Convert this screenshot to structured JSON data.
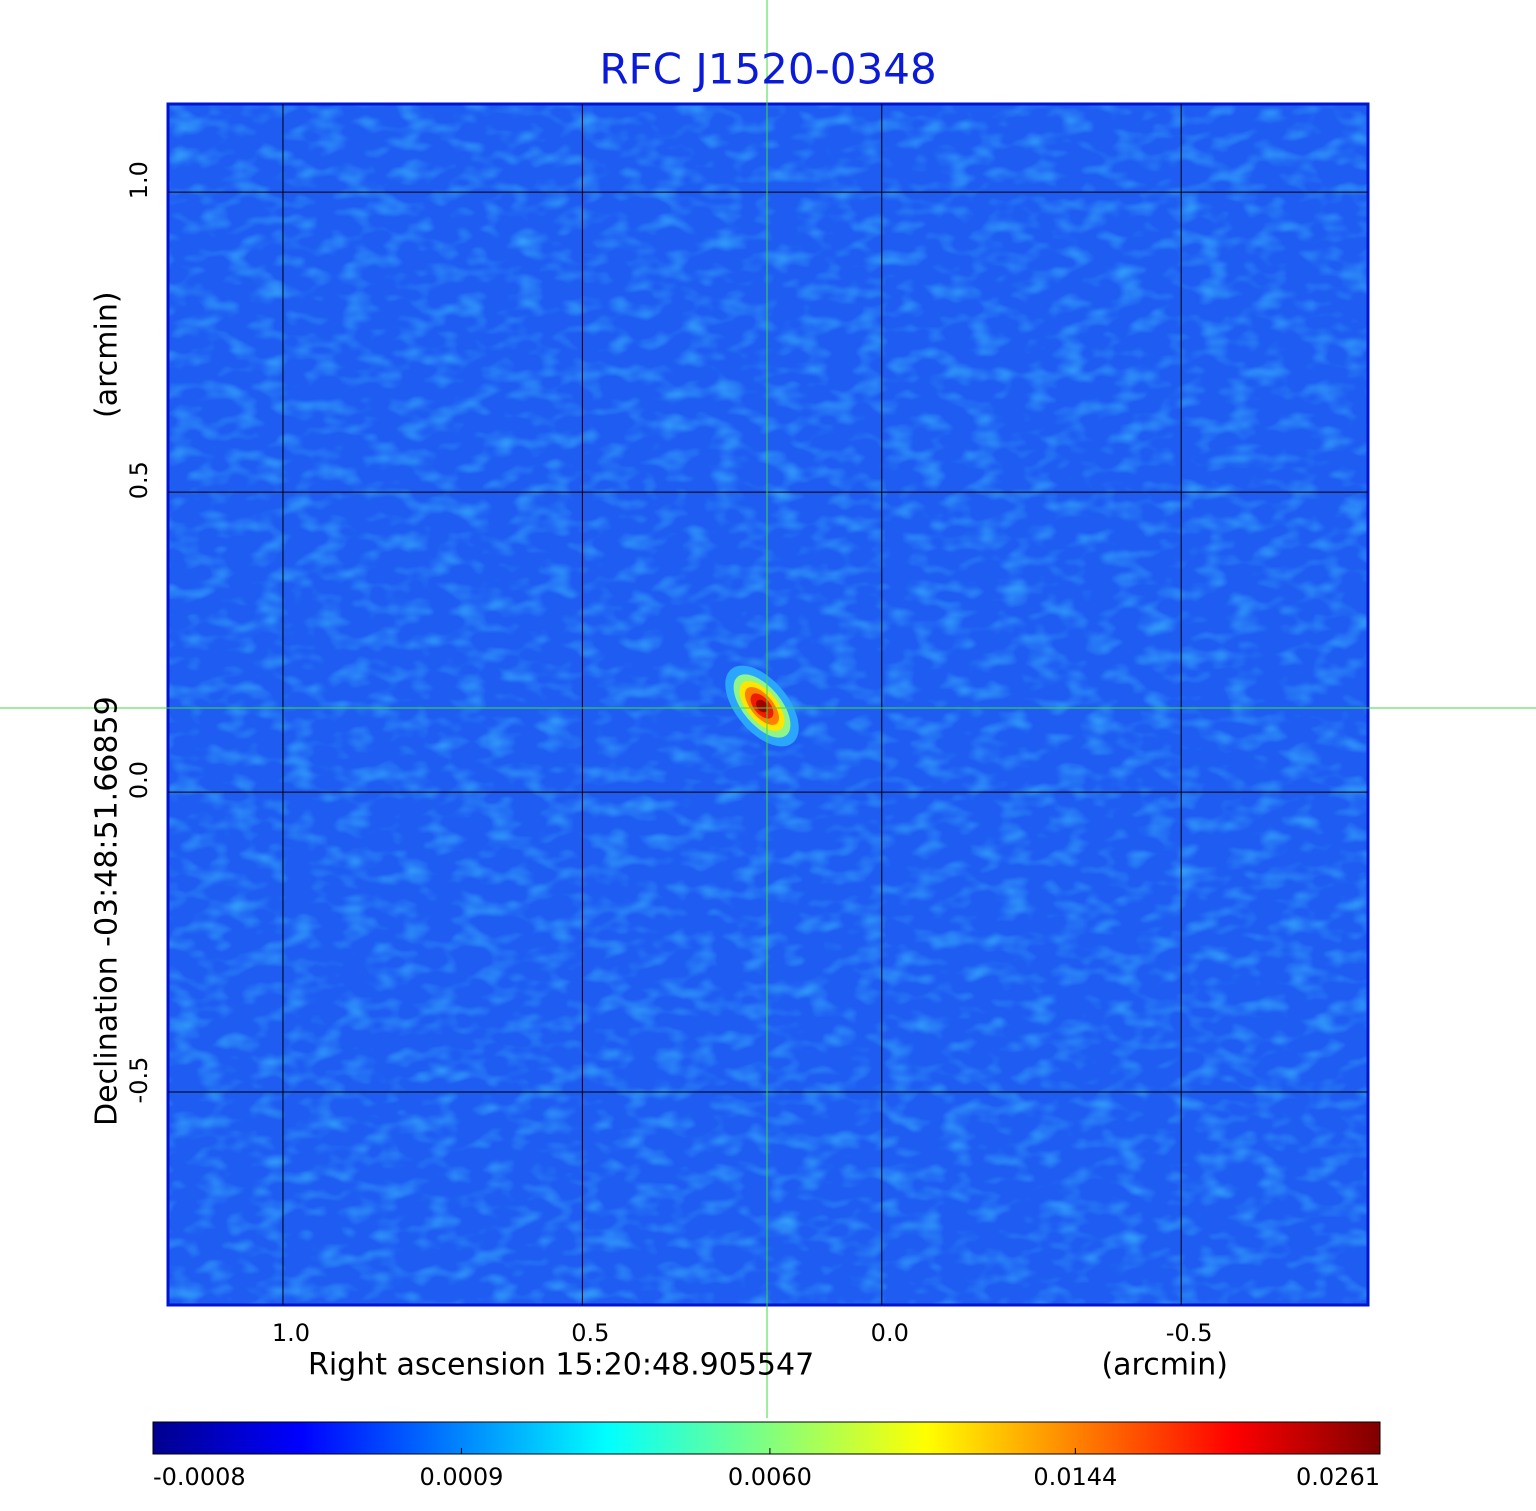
{
  "chart_data": {
    "type": "image",
    "title": "RFC J1520-0348",
    "xlabel": "Right ascension  15:20:48.905547",
    "xunit": "(arcmin)",
    "ylabel": "Declination  -03:48:51.66859",
    "yunit": "(arcmin)",
    "xlim": [
      1.192,
      -0.812
    ],
    "ylim": [
      -0.855,
      1.147
    ],
    "xticks": [
      {
        "value": 1,
        "label": "1.0"
      },
      0.5,
      {
        "value": 0,
        "label": "0.0"
      },
      -0.5
    ],
    "yticks": [
      {
        "value": 1,
        "label": "1.0"
      },
      0.5,
      {
        "value": 0,
        "label": "0.0"
      },
      -0.5
    ],
    "grid": true,
    "colorbar_scale": "sqrt",
    "clim": [
      -0.0008,
      0.0261
    ],
    "cticks": [
      -0.0008,
      0.0009,
      {
        "value": 0.006,
        "label": "0.0060"
      },
      0.0144,
      0.0261
    ]
  }
}
